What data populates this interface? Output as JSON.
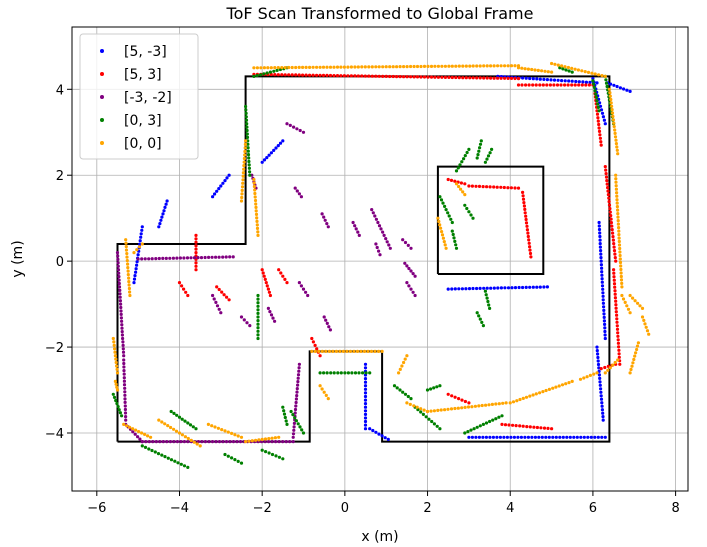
{
  "chart_data": {
    "type": "scatter",
    "title": "ToF Scan Transformed to Global Frame",
    "xlabel": "x (m)",
    "ylabel": "y (m)",
    "xlim": [
      -6.6,
      8.3
    ],
    "ylim": [
      -5.35,
      5.45
    ],
    "xticks": [
      -6,
      -4,
      -2,
      0,
      2,
      4,
      6,
      8
    ],
    "xtick_labels": [
      "−6",
      "−4",
      "−2",
      "0",
      "2",
      "4",
      "6",
      "8"
    ],
    "yticks": [
      -4,
      -2,
      0,
      2,
      4
    ],
    "ytick_labels": [
      "−4",
      "−2",
      "0",
      "2",
      "4"
    ],
    "grid": true,
    "legend_position": "top-left",
    "outline_color": "#000000",
    "map_outline": [
      [
        [
          -5.5,
          -4.2
        ],
        [
          -5.5,
          0.4
        ],
        [
          -2.4,
          0.4
        ],
        [
          -2.4,
          4.3
        ],
        [
          6.4,
          4.3
        ],
        [
          6.4,
          -4.2
        ],
        [
          0.9,
          -4.2
        ],
        [
          0.9,
          -2.1
        ],
        [
          -0.85,
          -2.1
        ],
        [
          -0.85,
          -4.2
        ],
        [
          -5.5,
          -4.2
        ]
      ],
      [
        [
          2.25,
          -0.3
        ],
        [
          2.25,
          2.2
        ],
        [
          4.8,
          2.2
        ],
        [
          4.8,
          -0.3
        ],
        [
          2.25,
          -0.3
        ]
      ]
    ],
    "series": [
      {
        "name": "[5, -3]",
        "color": "#0000ff",
        "segments": [
          [
            [
              6.35,
              4.15
            ],
            [
              6.9,
              3.95
            ]
          ],
          [
            [
              3.7,
              4.3
            ],
            [
              6.1,
              4.15
            ]
          ],
          [
            [
              6.0,
              4.25
            ],
            [
              6.3,
              3.2
            ]
          ],
          [
            [
              6.15,
              0.9
            ],
            [
              6.3,
              -1.8
            ]
          ],
          [
            [
              6.1,
              -2.0
            ],
            [
              6.25,
              -3.7
            ]
          ],
          [
            [
              3.0,
              -4.1
            ],
            [
              6.3,
              -4.1
            ]
          ],
          [
            [
              2.5,
              -0.65
            ],
            [
              4.9,
              -0.6
            ]
          ],
          [
            [
              0.5,
              -2.4
            ],
            [
              0.5,
              -3.9
            ]
          ],
          [
            [
              0.6,
              -3.9
            ],
            [
              1.05,
              -4.15
            ]
          ],
          [
            [
              -5.1,
              -0.5
            ],
            [
              -4.9,
              0.8
            ]
          ],
          [
            [
              -4.5,
              0.8
            ],
            [
              -4.3,
              1.4
            ]
          ],
          [
            [
              -3.2,
              1.5
            ],
            [
              -2.8,
              2.0
            ]
          ],
          [
            [
              -2.0,
              2.3
            ],
            [
              -1.5,
              2.8
            ]
          ]
        ]
      },
      {
        "name": "[5, 3]",
        "color": "#ff0000",
        "segments": [
          [
            [
              -2.2,
              4.35
            ],
            [
              4.2,
              4.25
            ]
          ],
          [
            [
              4.2,
              4.1
            ],
            [
              6.0,
              4.1
            ]
          ],
          [
            [
              6.05,
              3.9
            ],
            [
              6.2,
              2.7
            ]
          ],
          [
            [
              6.3,
              2.2
            ],
            [
              6.55,
              0.0
            ]
          ],
          [
            [
              6.5,
              -0.2
            ],
            [
              6.65,
              -2.4
            ]
          ],
          [
            [
              6.2,
              -2.5
            ],
            [
              6.55,
              -2.4
            ]
          ],
          [
            [
              3.0,
              1.75
            ],
            [
              4.2,
              1.7
            ]
          ],
          [
            [
              2.5,
              1.9
            ],
            [
              2.9,
              1.8
            ]
          ],
          [
            [
              4.3,
              1.6
            ],
            [
              4.5,
              0.1
            ]
          ],
          [
            [
              -3.6,
              0.6
            ],
            [
              -3.6,
              -0.2
            ]
          ],
          [
            [
              -4.0,
              -0.5
            ],
            [
              -3.8,
              -0.8
            ]
          ],
          [
            [
              -3.1,
              -0.6
            ],
            [
              -2.8,
              -0.9
            ]
          ],
          [
            [
              -2.0,
              -0.2
            ],
            [
              -1.8,
              -0.8
            ]
          ],
          [
            [
              -1.6,
              -0.2
            ],
            [
              -1.4,
              -0.5
            ]
          ],
          [
            [
              -0.8,
              -1.8
            ],
            [
              -0.6,
              -2.2
            ]
          ],
          [
            [
              2.5,
              -3.1
            ],
            [
              3.0,
              -3.3
            ]
          ],
          [
            [
              3.8,
              -3.8
            ],
            [
              5.0,
              -3.9
            ]
          ]
        ]
      },
      {
        "name": "[-3, -2]",
        "color": "#800080",
        "segments": [
          [
            [
              -5.5,
              0.2
            ],
            [
              -5.35,
              -2.2
            ]
          ],
          [
            [
              -5.35,
              -2.3
            ],
            [
              -5.3,
              -3.7
            ]
          ],
          [
            [
              -5.3,
              -3.8
            ],
            [
              -4.9,
              -4.2
            ]
          ],
          [
            [
              -4.9,
              -4.2
            ],
            [
              -1.25,
              -4.2
            ]
          ],
          [
            [
              -1.25,
              -4.1
            ],
            [
              -1.1,
              -2.4
            ]
          ],
          [
            [
              -5.0,
              0.05
            ],
            [
              -2.7,
              0.1
            ]
          ],
          [
            [
              -2.25,
              2.0
            ],
            [
              -2.15,
              1.7
            ]
          ],
          [
            [
              -1.4,
              3.2
            ],
            [
              -1.0,
              3.0
            ]
          ],
          [
            [
              -1.2,
              1.7
            ],
            [
              -1.05,
              1.5
            ]
          ],
          [
            [
              0.65,
              1.2
            ],
            [
              1.1,
              0.3
            ]
          ],
          [
            [
              0.2,
              0.9
            ],
            [
              0.35,
              0.6
            ]
          ],
          [
            [
              0.75,
              0.4
            ],
            [
              0.85,
              0.15
            ]
          ],
          [
            [
              1.4,
              0.5
            ],
            [
              1.6,
              0.3
            ]
          ],
          [
            [
              1.45,
              -0.05
            ],
            [
              1.7,
              -0.35
            ]
          ],
          [
            [
              1.5,
              -0.5
            ],
            [
              1.7,
              -0.8
            ]
          ],
          [
            [
              -3.2,
              -0.8
            ],
            [
              -3.0,
              -1.2
            ]
          ],
          [
            [
              -2.5,
              -1.3
            ],
            [
              -2.3,
              -1.5
            ]
          ],
          [
            [
              -1.85,
              -1.1
            ],
            [
              -1.7,
              -1.4
            ]
          ],
          [
            [
              -1.1,
              -0.5
            ],
            [
              -0.9,
              -0.8
            ]
          ],
          [
            [
              -0.5,
              -1.3
            ],
            [
              -0.35,
              -1.6
            ]
          ],
          [
            [
              -0.55,
              1.1
            ],
            [
              -0.4,
              0.8
            ]
          ]
        ]
      },
      {
        "name": "[0, 3]",
        "color": "#008000",
        "segments": [
          [
            [
              -2.2,
              4.3
            ],
            [
              -1.4,
              4.5
            ]
          ],
          [
            [
              -2.4,
              3.6
            ],
            [
              -2.3,
              2.0
            ]
          ],
          [
            [
              5.2,
              4.5
            ],
            [
              5.5,
              4.4
            ]
          ],
          [
            [
              6.0,
              4.2
            ],
            [
              6.15,
              3.5
            ]
          ],
          [
            [
              6.3,
              4.3
            ],
            [
              6.5,
              3.2
            ]
          ],
          [
            [
              2.3,
              1.5
            ],
            [
              2.6,
              0.9
            ]
          ],
          [
            [
              2.6,
              0.7
            ],
            [
              2.7,
              0.3
            ]
          ],
          [
            [
              2.7,
              2.1
            ],
            [
              3.0,
              2.6
            ]
          ],
          [
            [
              3.2,
              2.4
            ],
            [
              3.3,
              2.8
            ]
          ],
          [
            [
              3.4,
              2.3
            ],
            [
              3.55,
              2.6
            ]
          ],
          [
            [
              2.9,
              1.3
            ],
            [
              3.1,
              1.0
            ]
          ],
          [
            [
              3.4,
              -0.7
            ],
            [
              3.5,
              -1.1
            ]
          ],
          [
            [
              3.2,
              -1.2
            ],
            [
              3.35,
              -1.5
            ]
          ],
          [
            [
              -5.6,
              -3.1
            ],
            [
              -5.4,
              -3.6
            ]
          ],
          [
            [
              -4.9,
              -4.3
            ],
            [
              -3.8,
              -4.8
            ]
          ],
          [
            [
              -4.2,
              -3.5
            ],
            [
              -3.6,
              -3.9
            ]
          ],
          [
            [
              -2.9,
              -4.5
            ],
            [
              -2.5,
              -4.7
            ]
          ],
          [
            [
              -2.0,
              -4.4
            ],
            [
              -1.5,
              -4.6
            ]
          ],
          [
            [
              -1.3,
              -3.5
            ],
            [
              -1.0,
              -4.0
            ]
          ],
          [
            [
              -0.6,
              -2.6
            ],
            [
              0.6,
              -2.6
            ]
          ],
          [
            [
              1.2,
              -2.9
            ],
            [
              1.6,
              -3.2
            ]
          ],
          [
            [
              1.7,
              -3.4
            ],
            [
              2.3,
              -3.9
            ]
          ],
          [
            [
              2.0,
              -3.0
            ],
            [
              2.3,
              -2.9
            ]
          ],
          [
            [
              2.9,
              -4.0
            ],
            [
              3.8,
              -3.6
            ]
          ],
          [
            [
              -2.1,
              -0.8
            ],
            [
              -2.1,
              -1.8
            ]
          ],
          [
            [
              -1.5,
              -3.4
            ],
            [
              -1.4,
              -3.8
            ]
          ]
        ]
      },
      {
        "name": "[0, 0]",
        "color": "#ffa500",
        "segments": [
          [
            [
              -2.2,
              4.5
            ],
            [
              4.2,
              4.55
            ]
          ],
          [
            [
              4.2,
              4.5
            ],
            [
              5.0,
              4.4
            ]
          ],
          [
            [
              5.0,
              4.6
            ],
            [
              6.3,
              4.3
            ]
          ],
          [
            [
              6.4,
              4.0
            ],
            [
              6.6,
              2.5
            ]
          ],
          [
            [
              6.55,
              2.0
            ],
            [
              6.7,
              -0.6
            ]
          ],
          [
            [
              6.7,
              -0.8
            ],
            [
              6.9,
              -1.2
            ]
          ],
          [
            [
              6.9,
              -0.8
            ],
            [
              7.2,
              -1.1
            ]
          ],
          [
            [
              7.2,
              -1.3
            ],
            [
              7.35,
              -1.7
            ]
          ],
          [
            [
              7.1,
              -1.9
            ],
            [
              6.9,
              -2.6
            ]
          ],
          [
            [
              6.6,
              -2.3
            ],
            [
              6.3,
              -2.6
            ]
          ],
          [
            [
              6.1,
              -2.6
            ],
            [
              5.7,
              -2.75
            ]
          ],
          [
            [
              5.5,
              -2.8
            ],
            [
              4.0,
              -3.3
            ]
          ],
          [
            [
              3.9,
              -3.3
            ],
            [
              2.0,
              -3.5
            ]
          ],
          [
            [
              2.0,
              -3.5
            ],
            [
              1.5,
              -3.3
            ]
          ],
          [
            [
              1.5,
              -2.2
            ],
            [
              1.3,
              -2.6
            ]
          ],
          [
            [
              -0.8,
              -2.1
            ],
            [
              0.9,
              -2.1
            ]
          ],
          [
            [
              -0.6,
              -2.9
            ],
            [
              -0.4,
              -3.2
            ]
          ],
          [
            [
              -5.3,
              0.5
            ],
            [
              -5.2,
              -0.8
            ]
          ],
          [
            [
              -5.1,
              0.2
            ],
            [
              -4.9,
              0.4
            ]
          ],
          [
            [
              -5.6,
              -1.8
            ],
            [
              -5.5,
              -2.6
            ]
          ],
          [
            [
              -5.55,
              -2.8
            ],
            [
              -5.5,
              -3.0
            ]
          ],
          [
            [
              -5.35,
              -3.8
            ],
            [
              -4.7,
              -4.1
            ]
          ],
          [
            [
              -4.5,
              -3.7
            ],
            [
              -3.5,
              -4.3
            ]
          ],
          [
            [
              -3.3,
              -3.8
            ],
            [
              -2.5,
              -4.1
            ]
          ],
          [
            [
              -2.4,
              -4.2
            ],
            [
              -1.6,
              -4.1
            ]
          ],
          [
            [
              -2.4,
              2.8
            ],
            [
              -2.5,
              1.4
            ]
          ],
          [
            [
              -2.2,
              1.9
            ],
            [
              -2.1,
              0.6
            ]
          ],
          [
            [
              2.25,
              1.0
            ],
            [
              2.45,
              0.3
            ]
          ],
          [
            [
              2.7,
              1.8
            ],
            [
              2.9,
              1.55
            ]
          ]
        ]
      }
    ]
  }
}
